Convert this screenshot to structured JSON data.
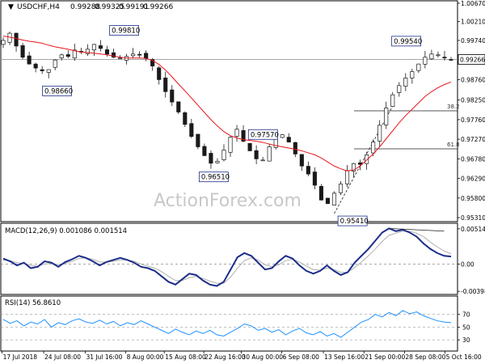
{
  "header": {
    "symbol": "USDCHF,H4",
    "open": "0.99288",
    "high": "0.99325",
    "low": "0.99191",
    "close": "0.99266"
  },
  "watermark": "ActionForex.com",
  "colors": {
    "candle": "#1a1a1a",
    "ma": "#e8141b",
    "macd_line": "#1c2e8a",
    "macd_signal": "#b0b0b0",
    "rsi": "#1e90ff",
    "fib_level": "#222222",
    "label_box": "#1c2e8a"
  },
  "chart_data": [
    {
      "type": "candlestick",
      "panel": "price",
      "series": [
        {
          "name": "USDCHF H4 close",
          "values": [
            0.9974,
            0.9992,
            0.996,
            0.9932,
            0.9915,
            0.9905,
            0.9898,
            0.9901,
            0.9925,
            0.9938,
            0.9934,
            0.995,
            0.9945,
            0.9952,
            0.9964,
            0.9954,
            0.994,
            0.9932,
            0.993,
            0.9934,
            0.994,
            0.9938,
            0.9929,
            0.991,
            0.9876,
            0.9846,
            0.982,
            0.9795,
            0.9764,
            0.9734,
            0.9708,
            0.9686,
            0.9667,
            0.9672,
            0.97,
            0.9732,
            0.9752,
            0.9722,
            0.9698,
            0.9678,
            0.9675,
            0.9708,
            0.9728,
            0.9738,
            0.972,
            0.969,
            0.966,
            0.964,
            0.9612,
            0.9575,
            0.9566,
            0.9592,
            0.9615,
            0.9648,
            0.9666,
            0.9664,
            0.9688,
            0.972,
            0.9762,
            0.9805,
            0.9838,
            0.9861,
            0.988,
            0.9896,
            0.9915,
            0.9932,
            0.994,
            0.9938,
            0.9932,
            0.9926
          ]
        },
        {
          "name": "Moving average",
          "values": [
            0.9985,
            0.9982,
            0.9979,
            0.9975,
            0.9972,
            0.997,
            0.9967,
            0.9962,
            0.9958,
            0.9955,
            0.9952,
            0.9948,
            0.9945,
            0.9944,
            0.9942,
            0.994,
            0.9938,
            0.9935,
            0.9932,
            0.993,
            0.993,
            0.993,
            0.9929,
            0.9924,
            0.9914,
            0.99,
            0.9883,
            0.9865,
            0.9848,
            0.983,
            0.9812,
            0.9794,
            0.9776,
            0.976,
            0.9746,
            0.9736,
            0.973,
            0.9726,
            0.9724,
            0.9722,
            0.9719,
            0.9715,
            0.9711,
            0.9708,
            0.9705,
            0.9702,
            0.9698,
            0.9693,
            0.9688,
            0.968,
            0.967,
            0.966,
            0.9653,
            0.9648,
            0.965,
            0.966,
            0.9675,
            0.969,
            0.9708,
            0.9728,
            0.9748,
            0.9768,
            0.9786,
            0.9802,
            0.9818,
            0.9834,
            0.9846,
            0.9856,
            0.9864,
            0.987
          ]
        }
      ],
      "annotations": [
        {
          "text": "0.98660",
          "x": 12,
          "y": 0.9866
        },
        {
          "text": "0.99810",
          "x": 27,
          "y": 0.9981
        },
        {
          "text": "0.96510",
          "x": 47,
          "y": 0.9651
        },
        {
          "text": "0.97570",
          "x": 58,
          "y": 0.9757
        },
        {
          "text": "0.95410",
          "x": 78,
          "y": 0.9541
        },
        {
          "text": "0.99540",
          "x": 90,
          "y": 0.9954
        }
      ],
      "fib_levels": [
        {
          "label": "38.2",
          "value": 0.9798
        },
        {
          "label": "61.8",
          "value": 0.9703
        }
      ],
      "current_price": "0.99266",
      "y_ticks": [
        "1.00670",
        "1.00210",
        "0.99740",
        "0.99266",
        "0.98760",
        "0.98250",
        "0.97760",
        "0.97270",
        "0.96780",
        "0.96290",
        "0.95800",
        "0.95310"
      ],
      "x_ticks": [
        "17 Jul 2018",
        "24 Jul 08:00",
        "31 Jul 16:00",
        "8 Aug 00:00",
        "15 Aug 08:00",
        "22 Aug 16:00",
        "30 Aug 00:00",
        "6 Sep 08:00",
        "13 Sep 16:00",
        "21 Sep 00:00",
        "28 Sep 08:00",
        "5 Oct 16:00"
      ],
      "ylim": [
        0.9525,
        1.0067
      ]
    },
    {
      "type": "line",
      "panel": "macd",
      "title": "MACD(12,26,9) 0.001086 0.001514",
      "series": [
        {
          "name": "MACD",
          "values": [
            0.0008,
            0.0004,
            -0.0002,
            0.0002,
            -0.0006,
            -0.0004,
            0.0004,
            0.0002,
            -0.0004,
            0.0003,
            0.0007,
            0.0012,
            0.0009,
            0.0004,
            -0.0002,
            0.0003,
            0.0006,
            0.0009,
            0.0006,
            0.0002,
            -0.0004,
            -0.0006,
            -0.001,
            -0.0018,
            -0.0026,
            -0.003,
            -0.0022,
            -0.0014,
            -0.0016,
            -0.0024,
            -0.003,
            -0.0032,
            -0.0026,
            -0.0008,
            0.001,
            0.0016,
            0.0012,
            0.0002,
            -0.0008,
            -0.0006,
            0.0004,
            0.0012,
            0.0008,
            -0.0002,
            -0.001,
            -0.0014,
            -0.001,
            -0.0002,
            -0.001,
            -0.0016,
            -0.0012,
            0.0002,
            0.0012,
            0.0022,
            0.0034,
            0.0046,
            0.0052,
            0.0048,
            0.005,
            0.0046,
            0.004,
            0.003,
            0.0022,
            0.0016,
            0.0012,
            0.0011
          ]
        },
        {
          "name": "Signal",
          "values": [
            0.0006,
            0.0005,
            0.0002,
            0.0001,
            -0.0002,
            -0.0003,
            0.0,
            0.0001,
            -0.0001,
            0.0001,
            0.0004,
            0.0008,
            0.0009,
            0.0007,
            0.0003,
            0.0003,
            0.0004,
            0.0006,
            0.0006,
            0.0004,
            0.0,
            -0.0003,
            -0.0006,
            -0.0011,
            -0.0018,
            -0.0024,
            -0.0024,
            -0.002,
            -0.0018,
            -0.0021,
            -0.0025,
            -0.0028,
            -0.0028,
            -0.0019,
            -0.0006,
            0.0005,
            0.0009,
            0.0006,
            -0.0001,
            -0.0004,
            -0.0001,
            0.0005,
            0.0007,
            0.0003,
            -0.0003,
            -0.0008,
            -0.0009,
            -0.0006,
            -0.0008,
            -0.0012,
            -0.0012,
            -0.0005,
            0.0003,
            0.0012,
            0.0022,
            0.0033,
            0.0042,
            0.0045,
            0.0048,
            0.0048,
            0.0045,
            0.004,
            0.0032,
            0.0025,
            0.0019,
            0.0015
          ]
        }
      ],
      "y_ticks": [
        "0.005141",
        "0.00",
        "-0.003982"
      ],
      "ylim": [
        -0.0042,
        0.0056
      ]
    },
    {
      "type": "line",
      "panel": "rsi",
      "title": "RSI(14) 56.8610",
      "series": [
        {
          "name": "RSI",
          "values": [
            62,
            56,
            60,
            52,
            58,
            55,
            62,
            50,
            57,
            54,
            60,
            63,
            58,
            56,
            61,
            55,
            59,
            52,
            57,
            54,
            60,
            55,
            50,
            45,
            40,
            47,
            42,
            38,
            44,
            40,
            45,
            38,
            36,
            42,
            48,
            55,
            52,
            45,
            48,
            42,
            46,
            38,
            44,
            48,
            41,
            38,
            43,
            36,
            40,
            34,
            42,
            50,
            58,
            62,
            70,
            66,
            73,
            68,
            76,
            71,
            74,
            68,
            64,
            60,
            58,
            57
          ]
        }
      ],
      "y_ticks": [
        "70",
        "50",
        "30"
      ],
      "ylim": [
        15,
        95
      ]
    }
  ]
}
